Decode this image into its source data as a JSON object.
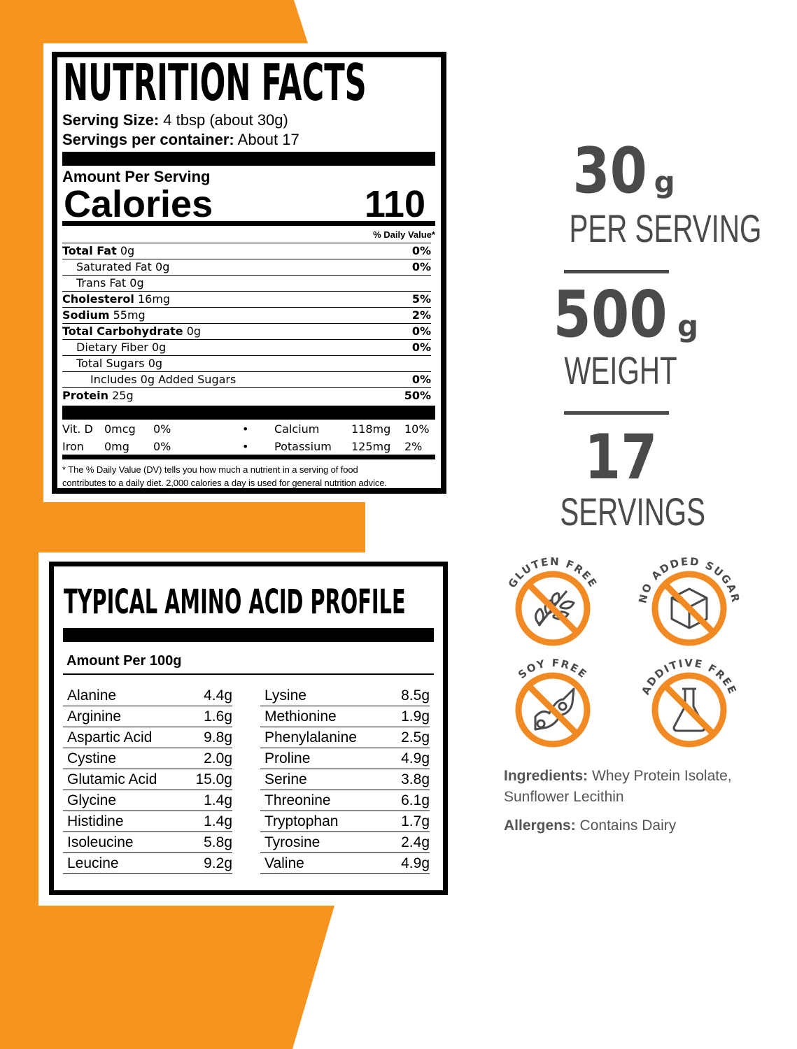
{
  "colors": {
    "orange": "#f7941d",
    "icon_orange": "#f28a24",
    "gray": "#4a4a4a"
  },
  "nutrition": {
    "title": "NUTRITION FACTS",
    "serving_size_label": "Serving Size:",
    "serving_size": "4 tbsp (about 30g)",
    "servings_label": "Servings per container:",
    "servings": "About 17",
    "amount_per_serving": "Amount Per Serving",
    "calories_label": "Calories",
    "calories": "110",
    "dv_header": "% Daily Value*",
    "rows": [
      {
        "name": "Total Fat",
        "amount": "0g",
        "dv": "0%",
        "bold": true,
        "indent": 0
      },
      {
        "name": "Saturated Fat",
        "amount": "0g",
        "dv": "0%",
        "bold": false,
        "indent": 1
      },
      {
        "name": "Trans Fat",
        "amount": "0g",
        "dv": "",
        "bold": false,
        "indent": 1
      },
      {
        "name": "Cholesterol",
        "amount": "16mg",
        "dv": "5%",
        "bold": true,
        "indent": 0
      },
      {
        "name": "Sodium",
        "amount": "55mg",
        "dv": "2%",
        "bold": true,
        "indent": 0
      },
      {
        "name": "Total Carbohydrate",
        "amount": "0g",
        "dv": "0%",
        "bold": true,
        "indent": 0
      },
      {
        "name": "Dietary Fiber",
        "amount": "0g",
        "dv": "0%",
        "bold": false,
        "indent": 1
      },
      {
        "name": "Total Sugars",
        "amount": "0g",
        "dv": "",
        "bold": false,
        "indent": 1
      },
      {
        "name": "Includes 0g Added Sugars",
        "amount": "",
        "dv": "0%",
        "bold": false,
        "indent": 2
      },
      {
        "name": "Protein",
        "amount": "25g",
        "dv": "50%",
        "bold": true,
        "indent": 0
      }
    ],
    "minerals": [
      {
        "name": "Vit. D",
        "amount": "0mcg",
        "dv": "0%",
        "name2": "Calcium",
        "amount2": "118mg",
        "dv2": "10%"
      },
      {
        "name": "Iron",
        "amount": "0mg",
        "dv": "0%",
        "name2": "Potassium",
        "amount2": "125mg",
        "dv2": "2%"
      }
    ],
    "bullet": "•",
    "footnote1": "* The % Daily Value (DV) tells you how much a nutrient in a serving of food",
    "footnote2": "contributes to a daily diet. 2,000 calories a day is used for general nutrition advice."
  },
  "amino": {
    "title": "TYPICAL AMINO ACID PROFILE",
    "subtitle": "Amount Per 100g",
    "left": [
      [
        "Alanine",
        "4.4g"
      ],
      [
        "Arginine",
        "1.6g"
      ],
      [
        "Aspartic Acid",
        "9.8g"
      ],
      [
        "Cystine",
        "2.0g"
      ],
      [
        "Glutamic Acid",
        "15.0g"
      ],
      [
        "Glycine",
        "1.4g"
      ],
      [
        "Histidine",
        "1.4g"
      ],
      [
        "Isoleucine",
        "5.8g"
      ],
      [
        "Leucine",
        "9.2g"
      ]
    ],
    "right": [
      [
        "Lysine",
        "8.5g"
      ],
      [
        "Methionine",
        "1.9g"
      ],
      [
        "Phenylalanine",
        "2.5g"
      ],
      [
        "Proline",
        "4.9g"
      ],
      [
        "Serine",
        "3.8g"
      ],
      [
        "Threonine",
        "6.1g"
      ],
      [
        "Tryptophan",
        "1.7g"
      ],
      [
        "Tyrosine",
        "2.4g"
      ],
      [
        "Valine",
        "4.9g"
      ]
    ]
  },
  "stats": [
    {
      "value": "30",
      "unit": "g",
      "label": "PER SERVING"
    },
    {
      "value": "500",
      "unit": "g",
      "label": "WEIGHT"
    },
    {
      "value": "17",
      "unit": "",
      "label": "SERVINGS"
    }
  ],
  "badges": [
    {
      "label": "GLUTEN FREE",
      "icon": "wheat-icon"
    },
    {
      "label": "NO ADDED SUGAR",
      "icon": "sugar-cube-icon"
    },
    {
      "label": "SOY FREE",
      "icon": "soybean-icon"
    },
    {
      "label": "ADDITIVE FREE",
      "icon": "flask-icon"
    }
  ],
  "ingredients_label": "Ingredients:",
  "ingredients": "Whey Protein Isolate, Sunflower Lecithin",
  "allergens_label": "Allergens:",
  "allergens": "Contains Dairy"
}
